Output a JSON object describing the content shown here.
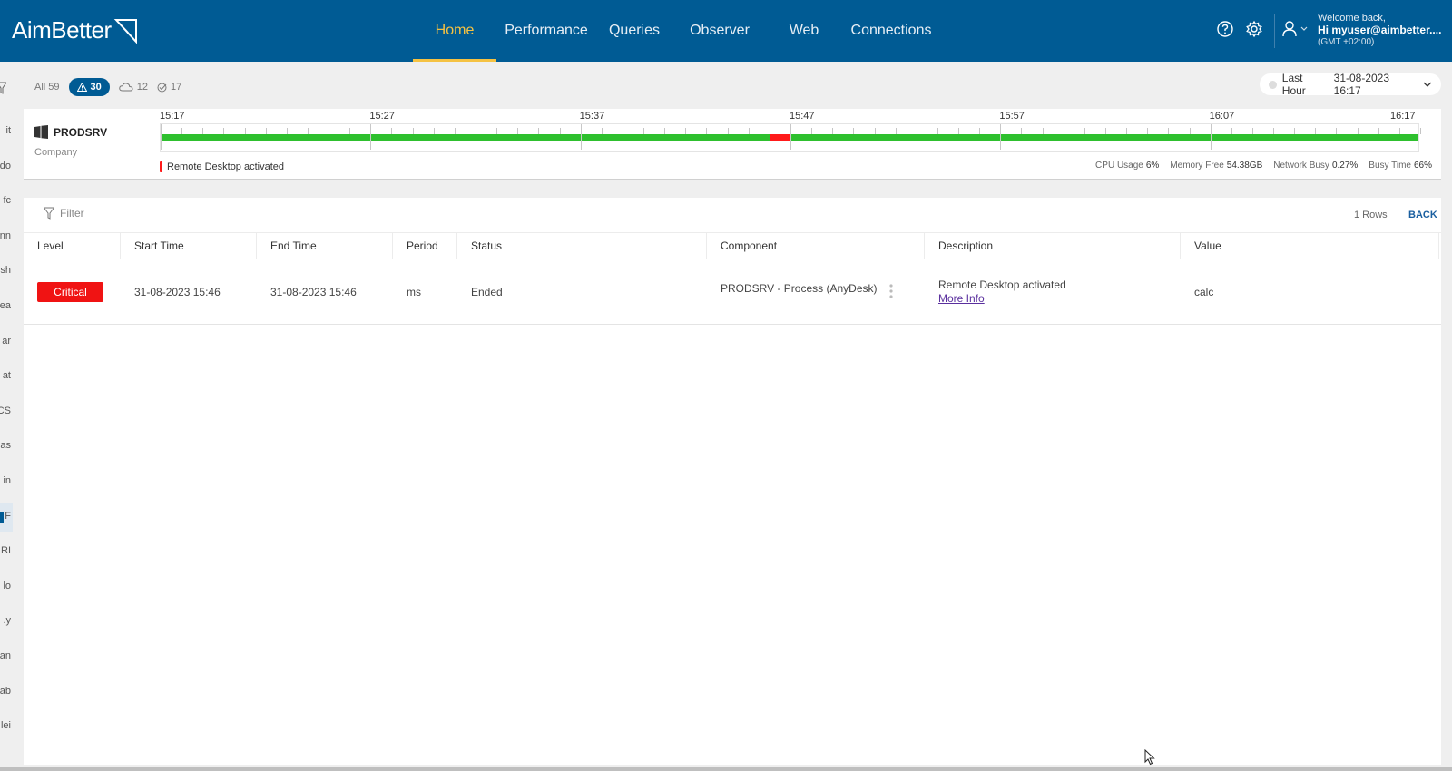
{
  "brand": {
    "name": "AimBetter"
  },
  "nav": {
    "items": [
      {
        "label": "Home",
        "active": true
      },
      {
        "label": "Performance",
        "active": false
      },
      {
        "label": "Queries",
        "active": false
      },
      {
        "label": "Observer",
        "active": false
      },
      {
        "label": "Web",
        "active": false
      },
      {
        "label": "Connections",
        "active": false
      }
    ]
  },
  "user": {
    "welcome": "Welcome back,",
    "greeting": "Hi myuser@aimbetter....",
    "timezone": "(GMT +02:00)"
  },
  "left_strip": [
    "it",
    "do",
    "fc",
    "nn",
    "sh",
    "ea",
    "ar",
    "at",
    "CS",
    "as",
    "in",
    "F",
    "RI",
    "lo",
    ".y",
    "an",
    "ab",
    "lei"
  ],
  "alert_tabs": {
    "all": "All 59",
    "alerts": "30",
    "cloud": "12",
    "resolved": "17"
  },
  "time_range": {
    "label": "Last Hour",
    "value": "31-08-2023 16:17"
  },
  "server": {
    "name": "PRODSRV",
    "company": "Company",
    "timeline": {
      "labels": [
        "15:17",
        "15:27",
        "15:37",
        "15:47",
        "15:57",
        "16:07",
        "16:17"
      ],
      "alert_start_min": 29.0,
      "alert_end_min": 30.0,
      "total_min": 60
    },
    "event": "Remote Desktop activated",
    "metrics": [
      {
        "label": "CPU Usage",
        "value": "6%"
      },
      {
        "label": "Memory Free",
        "value": "54.38GB"
      },
      {
        "label": "Network Busy",
        "value": "0.27%"
      },
      {
        "label": "Busy Time",
        "value": "66%"
      }
    ]
  },
  "table": {
    "filter_label": "Filter",
    "rows_count": "1 Rows",
    "back_label": "BACK",
    "columns": [
      "Level",
      "Start Time",
      "End Time",
      "Period",
      "Status",
      "Component",
      "Description",
      "Value"
    ],
    "rows": [
      {
        "level": "Critical",
        "start_time": "31-08-2023 15:46",
        "end_time": "31-08-2023 15:46",
        "period": "ms",
        "status": "Ended",
        "component": "PRODSRV - Process (AnyDesk)",
        "description": "Remote Desktop activated",
        "more_info": "More Info",
        "value": "calc"
      }
    ]
  },
  "colors": {
    "header_bg": "#005b94",
    "active_nav": "#f5c242",
    "timeline_ok": "#2ec02e",
    "timeline_alert": "#ff1a1a",
    "critical": "#f01313"
  }
}
